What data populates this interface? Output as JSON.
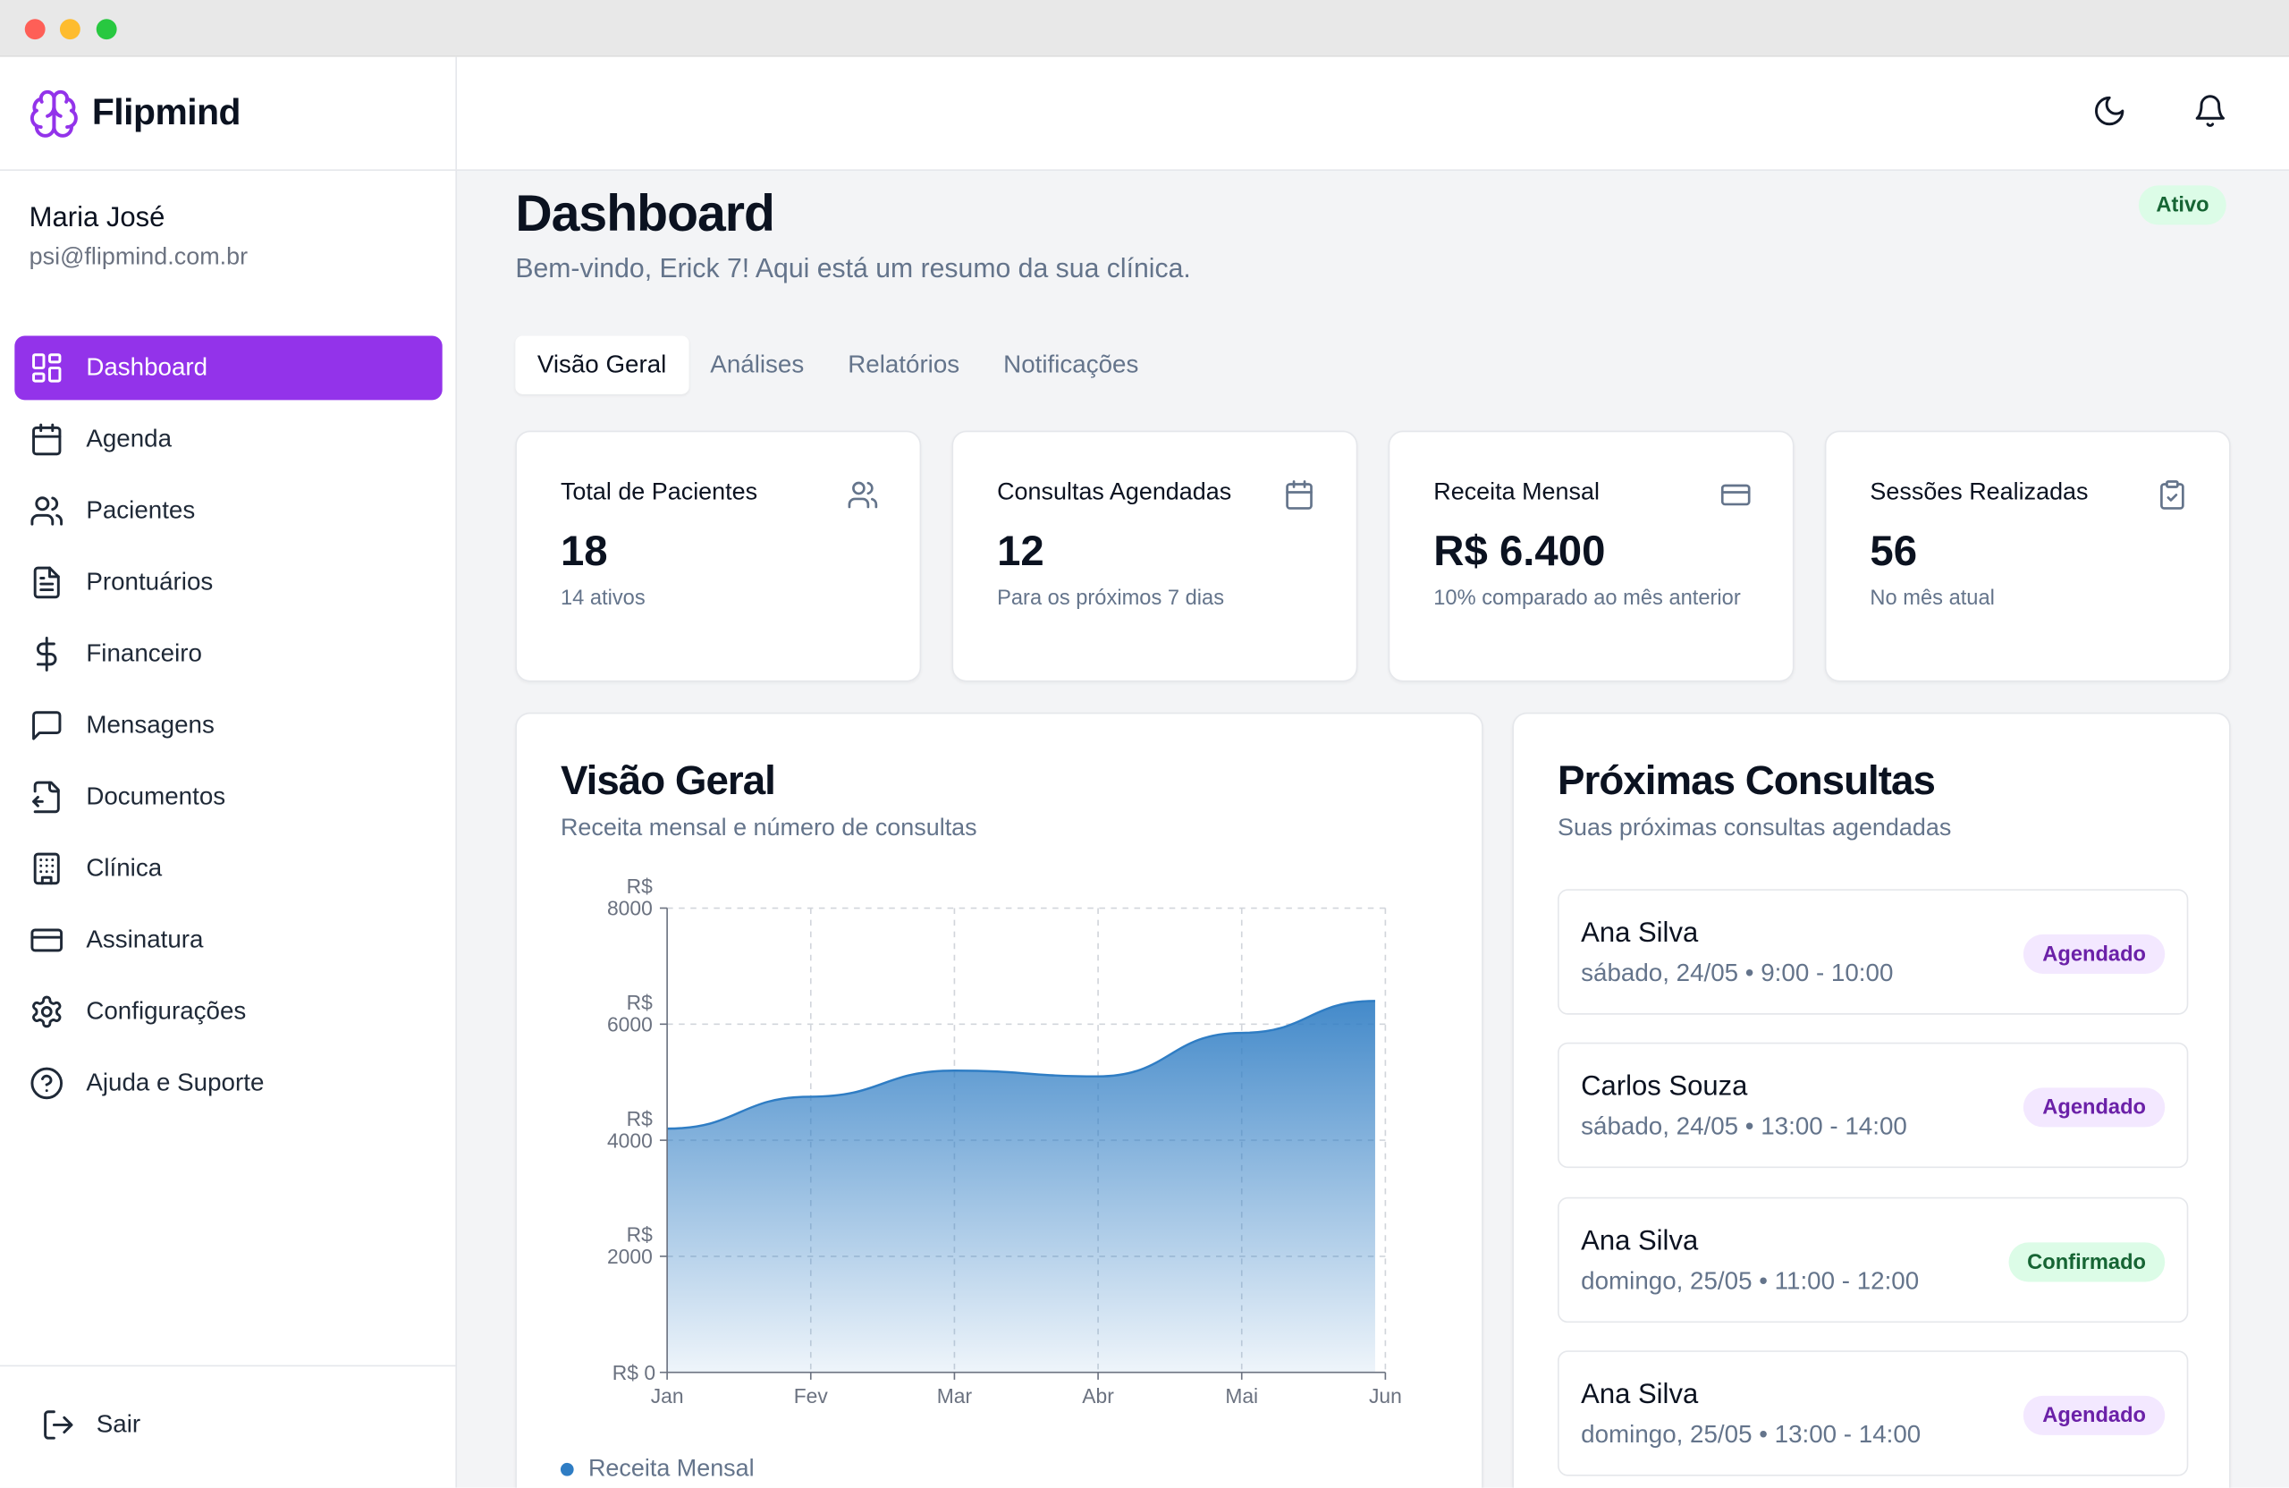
{
  "app": {
    "name": "Flipmind"
  },
  "user": {
    "name": "Maria José",
    "email": "psi@flipmind.com.br"
  },
  "sidebar": {
    "items": [
      {
        "label": "Dashboard",
        "icon": "dashboard-icon",
        "active": true
      },
      {
        "label": "Agenda",
        "icon": "calendar-icon"
      },
      {
        "label": "Pacientes",
        "icon": "users-icon"
      },
      {
        "label": "Prontuários",
        "icon": "file-text-icon"
      },
      {
        "label": "Financeiro",
        "icon": "dollar-icon"
      },
      {
        "label": "Mensagens",
        "icon": "message-icon"
      },
      {
        "label": "Documentos",
        "icon": "document-icon"
      },
      {
        "label": "Clínica",
        "icon": "building-icon"
      },
      {
        "label": "Assinatura",
        "icon": "credit-card-icon"
      },
      {
        "label": "Configurações",
        "icon": "gear-icon"
      },
      {
        "label": "Ajuda e Suporte",
        "icon": "help-icon"
      }
    ],
    "logout_label": "Sair"
  },
  "header": {
    "theme_icon": "moon-icon",
    "notifications_icon": "bell-icon"
  },
  "page": {
    "title": "Dashboard",
    "subtitle": "Bem-vindo, Erick 7! Aqui está um resumo da sua clínica.",
    "status": "Ativo"
  },
  "tabs": [
    {
      "label": "Visão Geral",
      "active": true
    },
    {
      "label": "Análises"
    },
    {
      "label": "Relatórios"
    },
    {
      "label": "Notificações"
    }
  ],
  "stats": [
    {
      "title": "Total de Pacientes",
      "value": "18",
      "note": "14 ativos",
      "icon": "users-icon"
    },
    {
      "title": "Consultas Agendadas",
      "value": "12",
      "note": "Para os próximos 7 dias",
      "icon": "calendar-icon"
    },
    {
      "title": "Receita Mensal",
      "value": "R$ 6.400",
      "note": "10% comparado ao mês anterior",
      "icon": "credit-card-icon"
    },
    {
      "title": "Sessões Realizadas",
      "value": "56",
      "note": "No mês atual",
      "icon": "clipboard-check-icon"
    }
  ],
  "overview": {
    "title": "Visão Geral",
    "subtitle": "Receita mensal e número de consultas"
  },
  "chart_data": {
    "type": "area",
    "categories": [
      "Jan",
      "Fev",
      "Mar",
      "Abr",
      "Mai",
      "Jun"
    ],
    "series": [
      {
        "name": "Receita Mensal",
        "values": [
          4200,
          4750,
          5200,
          5100,
          5850,
          6400
        ]
      }
    ],
    "y_ticks": [
      "R$ 0",
      "R$ 2000",
      "R$ 4000",
      "R$ 6000",
      "R$ 8000"
    ],
    "ylim": [
      0,
      8000
    ],
    "grid": true,
    "legend": "bottom-left",
    "color": "#2f7dc4"
  },
  "appointments": {
    "title": "Próximas Consultas",
    "subtitle": "Suas próximas consultas agendadas",
    "items": [
      {
        "name": "Ana Silva",
        "when": "sábado, 24/05 • 9:00 - 10:00",
        "status": "Agendado"
      },
      {
        "name": "Carlos Souza",
        "when": "sábado, 24/05 • 13:00 - 14:00",
        "status": "Agendado"
      },
      {
        "name": "Ana Silva",
        "when": "domingo, 25/05 • 11:00 - 12:00",
        "status": "Confirmado"
      },
      {
        "name": "Ana Silva",
        "when": "domingo, 25/05 • 13:00 - 14:00",
        "status": "Agendado"
      }
    ]
  },
  "colors": {
    "accent": "#9333ea",
    "chart": "#2f7dc4",
    "success_bg": "#dcfce7",
    "success_text": "#166534"
  }
}
